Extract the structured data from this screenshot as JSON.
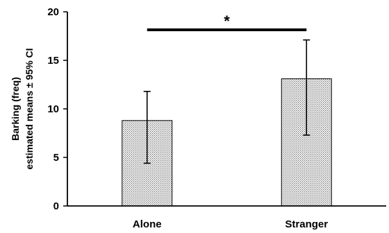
{
  "chart_data": {
    "type": "bar",
    "categories": [
      "Alone",
      "Stranger"
    ],
    "values": [
      8.8,
      13.1
    ],
    "error_low": [
      4.4,
      7.3
    ],
    "error_high": [
      11.8,
      17.1
    ],
    "ylabel_line1": "Barking (freq)",
    "ylabel_line2": "estimated means ± 95% CI",
    "ylim": [
      0,
      20
    ],
    "yticks": [
      0,
      5,
      10,
      15,
      20
    ],
    "ytick_labels": [
      "0",
      "5",
      "10",
      "15",
      "20"
    ],
    "significance": {
      "between": [
        "Alone",
        "Stranger"
      ],
      "label": "*"
    },
    "grid": false,
    "legend": "none",
    "bar_fill": "#d9d9d9",
    "bar_pattern": "dotted",
    "bar_edge": "#000000"
  }
}
